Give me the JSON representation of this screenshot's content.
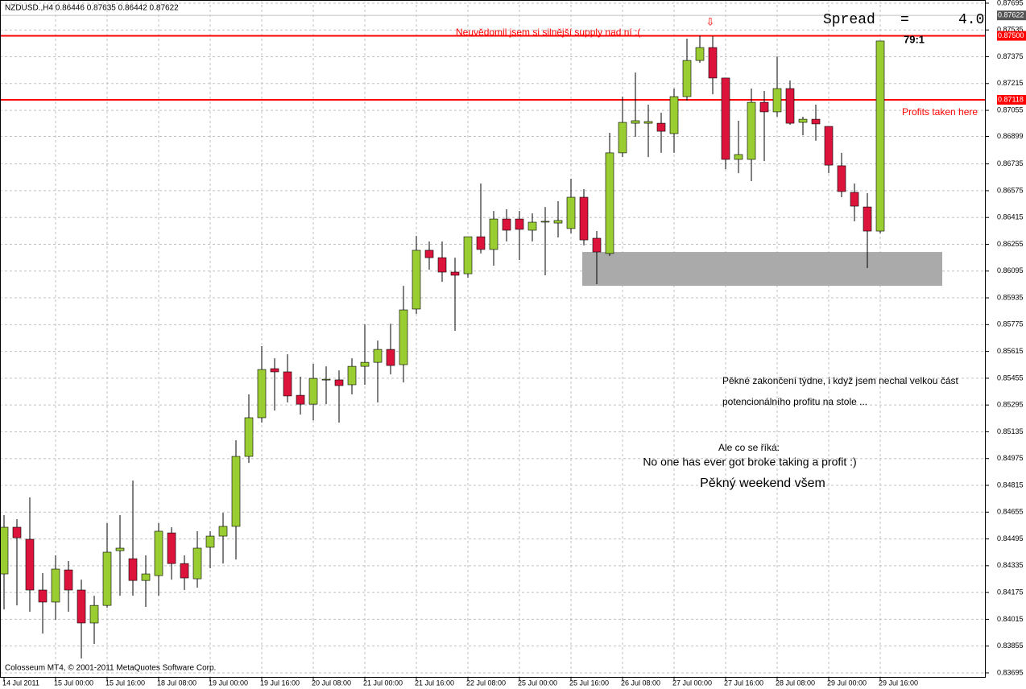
{
  "chart_data": {
    "type": "candlestick",
    "title": "NZDUSD.,H4  0.86446 0.87635 0.86442 0.87622",
    "categories": [
      "14 Jul 2011",
      null,
      null,
      null,
      "15 Jul 00:00",
      null,
      null,
      null,
      "15 Jul 16:00",
      null,
      null,
      null,
      "18 Jul 08:00",
      null,
      null,
      null,
      "19 Jul 00:00",
      null,
      null,
      null,
      "19 Jul 16:00",
      null,
      null,
      null,
      "20 Jul 08:00",
      null,
      null,
      null,
      "21 Jul 00:00",
      null,
      null,
      null,
      "21 Jul 16:00",
      null,
      null,
      null,
      "22 Jul 08:00",
      null,
      null,
      null,
      "25 Jul 00:00",
      null,
      null,
      null,
      "25 Jul 16:00",
      null,
      null,
      null,
      "26 Jul 08:00",
      null,
      null,
      null,
      "27 Jul 00:00",
      null,
      null,
      null,
      "27 Jul 16:00",
      null,
      null,
      null,
      "28 Jul 08:00",
      null,
      null,
      null,
      "29 Jul 00:00",
      null,
      null,
      null,
      "29 Jul 16:00"
    ],
    "open": [
      0.84286,
      0.84565,
      0.84493,
      0.8419,
      0.84118,
      0.8431,
      0.8419,
      0.83993,
      0.84098,
      0.84425,
      0.84377,
      0.84247,
      0.84276,
      0.84531,
      0.84348,
      0.84257,
      0.84445,
      0.84512,
      0.8457,
      0.84988,
      0.85219,
      0.85512,
      0.85493,
      0.85353,
      0.853,
      0.85445,
      0.85445,
      0.85416,
      0.85526,
      0.8555,
      0.85627,
      0.85536,
      0.85868,
      0.86219,
      0.86175,
      0.86089,
      0.86079,
      0.863,
      0.86224,
      0.86406,
      0.86406,
      0.86339,
      0.86392,
      0.86382,
      0.86349,
      0.86536,
      0.86291,
      0.862,
      0.86801,
      0.86978,
      0.86978,
      0.86978,
      0.86916,
      0.87137,
      0.87353,
      0.8743,
      0.87248,
      0.86762,
      0.86762,
      0.87103,
      0.87046,
      0.87185,
      0.86983,
      0.87002,
      0.86959,
      0.86724,
      0.86565,
      0.86478,
      0.86334
    ],
    "high": [
      0.84637,
      0.84613,
      0.84743,
      0.84291,
      0.84397,
      0.84363,
      0.84252,
      0.84156,
      0.84589,
      0.84637,
      0.84844,
      0.84397,
      0.84589,
      0.84565,
      0.84397,
      0.84541,
      0.84541,
      0.84651,
      0.85084,
      0.85358,
      0.85647,
      0.85574,
      0.85598,
      0.85464,
      0.85541,
      0.85526,
      0.85502,
      0.85574,
      0.85776,
      0.8568,
      0.85781,
      0.86007,
      0.86305,
      0.86272,
      0.86272,
      0.86175,
      0.863,
      0.86618,
      0.86454,
      0.86464,
      0.86454,
      0.8644,
      0.86478,
      0.86512,
      0.86647,
      0.86584,
      0.86334,
      0.86921,
      0.87137,
      0.87281,
      0.87089,
      0.87041,
      0.87185,
      0.87483,
      0.87502,
      0.87498,
      0.87248,
      0.86993,
      0.87185,
      0.87171,
      0.87377,
      0.87233,
      0.87017,
      0.87089,
      0.86959,
      0.86801,
      0.86618,
      0.8656,
      0.87469
    ],
    "low": [
      0.84074,
      0.84098,
      0.8406,
      0.8393,
      0.84012,
      0.8406,
      0.83781,
      0.83868,
      0.84084,
      0.84156,
      0.84156,
      0.84089,
      0.84156,
      0.84252,
      0.8419,
      0.84204,
      0.8432,
      0.84348,
      0.84372,
      0.84949,
      0.8519,
      0.85262,
      0.8531,
      0.85238,
      0.85204,
      0.853,
      0.8519,
      0.85358,
      0.85416,
      0.8531,
      0.85478,
      0.8543,
      0.85839,
      0.86103,
      0.86031,
      0.85738,
      0.86055,
      0.862,
      0.86127,
      0.86272,
      0.86161,
      0.86272,
      0.8607,
      0.86296,
      0.8632,
      0.86248,
      0.86017,
      0.86185,
      0.86776,
      0.86897,
      0.86776,
      0.86801,
      0.86801,
      0.87113,
      0.87339,
      0.87151,
      0.86704,
      0.8668,
      0.86632,
      0.86752,
      0.87017,
      0.86969,
      0.86906,
      0.86873,
      0.8668,
      0.86536,
      0.86392,
      0.86113,
      0.8632
    ],
    "close": [
      0.84565,
      0.84502,
      0.8419,
      0.84118,
      0.84315,
      0.8419,
      0.83993,
      0.84098,
      0.84416,
      0.8444,
      0.84247,
      0.84286,
      0.84541,
      0.84348,
      0.84262,
      0.8444,
      0.84512,
      0.8457,
      0.84988,
      0.85219,
      0.85507,
      0.85493,
      0.85349,
      0.853,
      0.85454,
      0.85449,
      0.85411,
      0.85526,
      0.8555,
      0.85627,
      0.85531,
      0.85863,
      0.86219,
      0.86175,
      0.86089,
      0.8607,
      0.863,
      0.86224,
      0.86406,
      0.86339,
      0.86344,
      0.86387,
      0.86392,
      0.86397,
      0.86536,
      0.86281,
      0.86209,
      0.86801,
      0.86983,
      0.86993,
      0.86988,
      0.8693,
      0.87137,
      0.87353,
      0.8743,
      0.87248,
      0.86762,
      0.86791,
      0.87103,
      0.87046,
      0.87185,
      0.86978,
      0.87002,
      0.86974,
      0.86728,
      0.8657,
      0.86483,
      0.86334,
      0.87469
    ],
    "up_color": "#9acd32",
    "down_color": "#dc143c",
    "ylim": [
      0.83666,
      0.87714
    ],
    "yticks": [
      0.87695,
      0.87535,
      0.87375,
      0.87215,
      0.87055,
      0.86899,
      0.86735,
      0.86575,
      0.86415,
      0.86255,
      0.86095,
      0.85935,
      0.85775,
      0.85615,
      0.85455,
      0.85295,
      0.85135,
      0.84975,
      0.84815,
      0.84655,
      0.84495,
      0.84335,
      0.84175,
      0.84015,
      0.83855,
      0.83695
    ],
    "grid": true,
    "levels": [
      {
        "value": 0.875,
        "label": "0.87500",
        "color": "#ff0000"
      },
      {
        "value": 0.87118,
        "label": "0.87118",
        "color": "#ff0000"
      }
    ],
    "current_price": {
      "value": 0.87622,
      "color": "#555555"
    },
    "zone": {
      "top": 0.86209,
      "bottom": 0.86007,
      "color": "#aaaaaa"
    },
    "annotations": {
      "arrow": "⇩",
      "supply": "Neuvědomil jsem si silnější supply nad ní :(",
      "spread_label": "Spread",
      "spread_eq": "=",
      "spread_value": "4.0",
      "ratio": "79:1",
      "profits": "Profits taken here",
      "para1": "Pěkné zakončení týdne, i když jsem nechal velkou část",
      "para2": "potencionálního profitu na stole ...",
      "saying_intro": "Ale co se říká:",
      "saying": "No one has ever got broke taking a profit :)",
      "weekend": "Pěkný weekend všem",
      "copyright": "Colosseum MT4, © 2001-2011 MetaQuotes Software Corp."
    }
  }
}
